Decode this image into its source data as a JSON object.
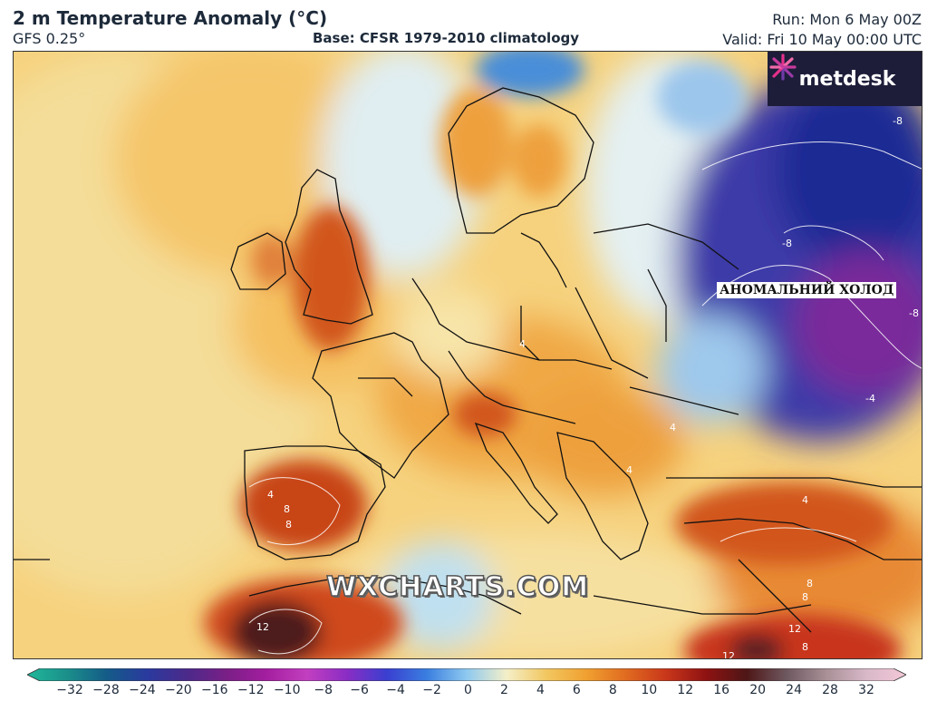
{
  "header": {
    "title": "2 m Temperature Anomaly (°C)",
    "model": "GFS 0.25°",
    "base": "Base: CFSR 1979-2010 climatology",
    "run": "Run: Mon 6 May 00Z",
    "valid": "Valid: Fri 10 May 00:00 UTC"
  },
  "branding": {
    "logo": "metdesk",
    "logo_icon": "metdesk-burst-icon",
    "watermark": "WXCHARTS.COM"
  },
  "annotation": {
    "callout": "АНОМАЛЬНИЙ ХОЛОД"
  },
  "contour_labels": [
    "-8",
    "-8",
    "-8",
    "-4",
    "4",
    "8",
    "8",
    "4",
    "12",
    "8",
    "8",
    "12",
    "8",
    "12",
    "4",
    "4",
    "4"
  ],
  "colorbar": {
    "ticks": [
      "−32",
      "−28",
      "−24",
      "−20",
      "−16",
      "−12",
      "−10",
      "−8",
      "−6",
      "−4",
      "−2",
      "0",
      "2",
      "4",
      "6",
      "8",
      "10",
      "12",
      "16",
      "20",
      "24",
      "28",
      "32"
    ],
    "colors": [
      "#1fb89a",
      "#1b8f8a",
      "#145b88",
      "#2a3a9e",
      "#4b2a8a",
      "#7a1f86",
      "#a41ea0",
      "#c23fc0",
      "#8a2dc4",
      "#3a3fd0",
      "#3a7ee0",
      "#8ec9f0",
      "#f4efc8",
      "#f2c760",
      "#f0a030",
      "#e06a20",
      "#c8361a",
      "#8e1212",
      "#4e1616",
      "#6e5860",
      "#a89096",
      "#d8b8c8",
      "#f4c8d8"
    ]
  }
}
